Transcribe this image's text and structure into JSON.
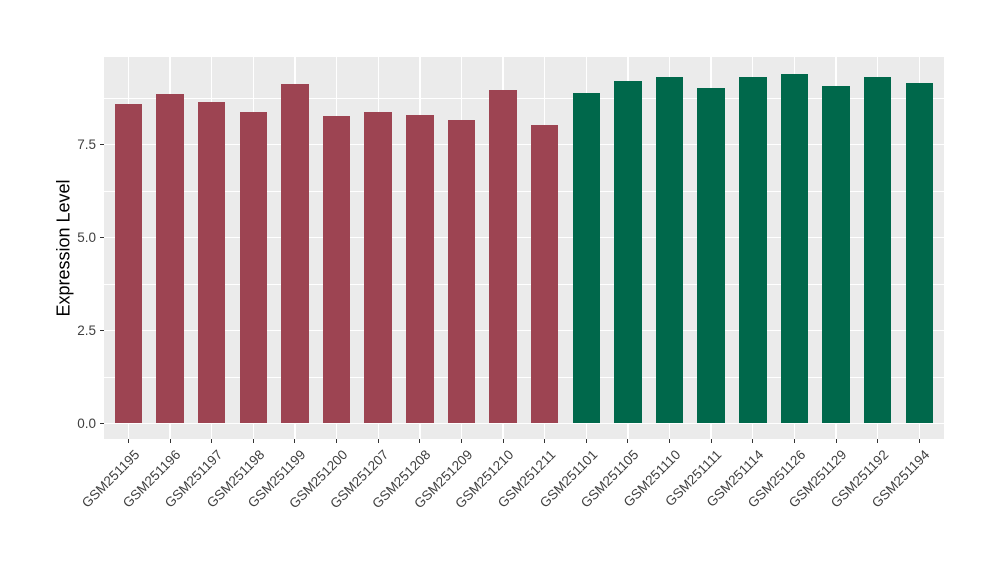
{
  "chart_data": {
    "type": "bar",
    "title": "",
    "xlabel": "",
    "ylabel": "Expression Level",
    "ylim": [
      0,
      9.85
    ],
    "grid": "on",
    "legend": "none",
    "ytick_labels": [
      "0.0",
      "2.5",
      "5.0",
      "7.5"
    ],
    "ytick_values": [
      0,
      2.5,
      5.0,
      7.5
    ],
    "minor_ytick_values": [
      1.25,
      3.75,
      6.25,
      8.75
    ],
    "categories": [
      "GSM251195",
      "GSM251196",
      "GSM251197",
      "GSM251198",
      "GSM251199",
      "GSM251200",
      "GSM251207",
      "GSM251208",
      "GSM251209",
      "GSM251210",
      "GSM251211",
      "GSM251101",
      "GSM251105",
      "GSM251110",
      "GSM251111",
      "GSM251114",
      "GSM251126",
      "GSM251129",
      "GSM251192",
      "GSM251194"
    ],
    "values": [
      8.6,
      8.86,
      8.65,
      8.37,
      9.13,
      8.27,
      8.37,
      8.29,
      8.16,
      8.96,
      8.02,
      8.88,
      9.22,
      9.31,
      9.01,
      9.31,
      9.4,
      9.08,
      9.31,
      9.16
    ],
    "bar_colors": [
      "#9D4452",
      "#9D4452",
      "#9D4452",
      "#9D4452",
      "#9D4452",
      "#9D4452",
      "#9D4452",
      "#9D4452",
      "#9D4452",
      "#9D4452",
      "#9D4452",
      "#00684B",
      "#00684B",
      "#00684B",
      "#00684B",
      "#00684B",
      "#00684B",
      "#00684B",
      "#00684B",
      "#00684B"
    ]
  },
  "colors": {
    "background": "#FFFFFF",
    "panel_background": "#EBEBEB",
    "gridline": "#FFFFFF",
    "axis_text": "#404040",
    "axis_title": "#000000",
    "tick_mark": "#333333",
    "group1_bar": "#9D4452",
    "group2_bar": "#00684B"
  }
}
